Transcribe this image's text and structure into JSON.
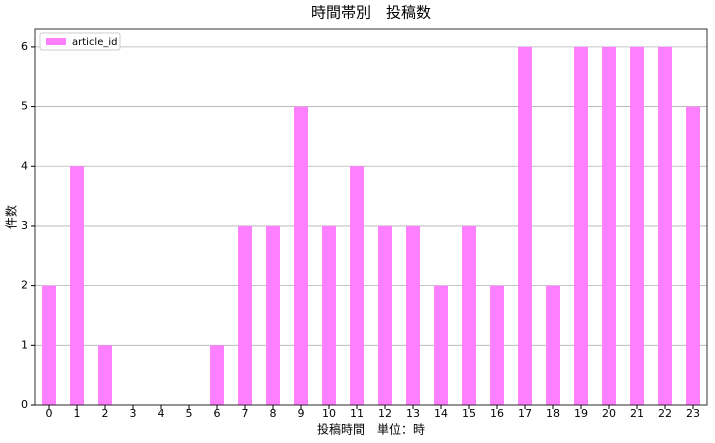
{
  "chart_data": {
    "type": "bar",
    "title": "時間帯別　投稿数",
    "x_label": "投稿時間　単位：時",
    "y_label": "件数",
    "categories": [
      "0",
      "1",
      "2",
      "3",
      "4",
      "5",
      "6",
      "7",
      "8",
      "9",
      "10",
      "11",
      "12",
      "13",
      "14",
      "15",
      "16",
      "17",
      "18",
      "19",
      "20",
      "21",
      "22",
      "23"
    ],
    "series": [
      {
        "name": "article_id",
        "color": "#ff80ff",
        "values": [
          2,
          4,
          1,
          0,
          0,
          0,
          1,
          3,
          3,
          5,
          3,
          4,
          3,
          3,
          2,
          3,
          2,
          6,
          2,
          6,
          6,
          6,
          6,
          5
        ]
      }
    ],
    "ylim": [
      0,
      6.3
    ],
    "yticks": [
      0,
      1,
      2,
      3,
      4,
      5,
      6
    ],
    "grid": true,
    "legend": "upper left"
  }
}
